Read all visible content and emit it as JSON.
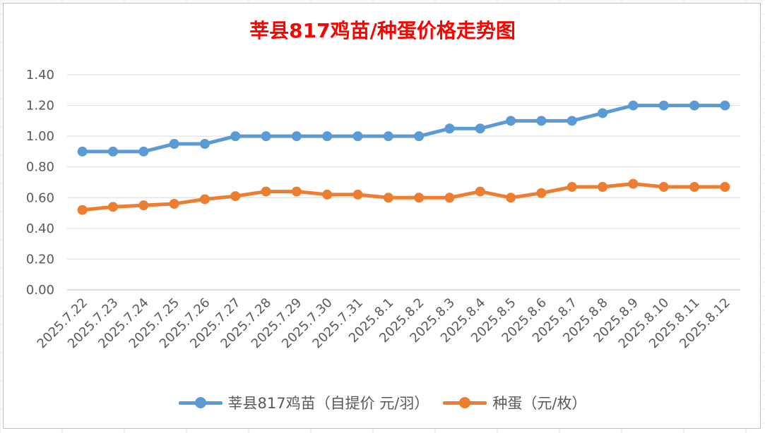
{
  "title": "莘县817鸡苗/种蛋价格走势图",
  "colors": {
    "title": "#ff0000",
    "series1": "#5b9bd5",
    "series2": "#ed7d31",
    "grid": "#d9d9d9",
    "text": "#595959"
  },
  "legend": {
    "series1_label": "莘县817鸡苗（自提价 元/羽）",
    "series2_label": "种蛋（元/枚）"
  },
  "chart_data": {
    "type": "line",
    "title": "莘县817鸡苗/种蛋价格走势图",
    "categories": [
      "2025.7.22",
      "2025.7.23",
      "2025.7.24",
      "2025.7.25",
      "2025.7.26",
      "2025.7.27",
      "2025.7.28",
      "2025.7.29",
      "2025.7.30",
      "2025.7.31",
      "2025.8.1",
      "2025.8.2",
      "2025.8.3",
      "2025.8.4",
      "2025.8.5",
      "2025.8.6",
      "2025.8.7",
      "2025.8.8",
      "2025.8.9",
      "2025.8.10",
      "2025.8.11",
      "2025.8.12"
    ],
    "series": [
      {
        "name": "莘县817鸡苗（自提价 元/羽）",
        "values": [
          0.9,
          0.9,
          0.9,
          0.95,
          0.95,
          1.0,
          1.0,
          1.0,
          1.0,
          1.0,
          1.0,
          1.0,
          1.05,
          1.05,
          1.1,
          1.1,
          1.1,
          1.15,
          1.2,
          1.2,
          1.2,
          1.2
        ]
      },
      {
        "name": "种蛋（元/枚）",
        "values": [
          0.52,
          0.54,
          0.55,
          0.56,
          0.59,
          0.61,
          0.64,
          0.64,
          0.62,
          0.62,
          0.6,
          0.6,
          0.6,
          0.64,
          0.6,
          0.63,
          0.67,
          0.67,
          0.69,
          0.67,
          0.67,
          0.67
        ]
      }
    ],
    "yticks": [
      "0.00",
      "0.20",
      "0.40",
      "0.60",
      "0.80",
      "1.00",
      "1.20",
      "1.40"
    ],
    "ylim": [
      0,
      1.4
    ],
    "grid": true,
    "legend_position": "bottom"
  }
}
